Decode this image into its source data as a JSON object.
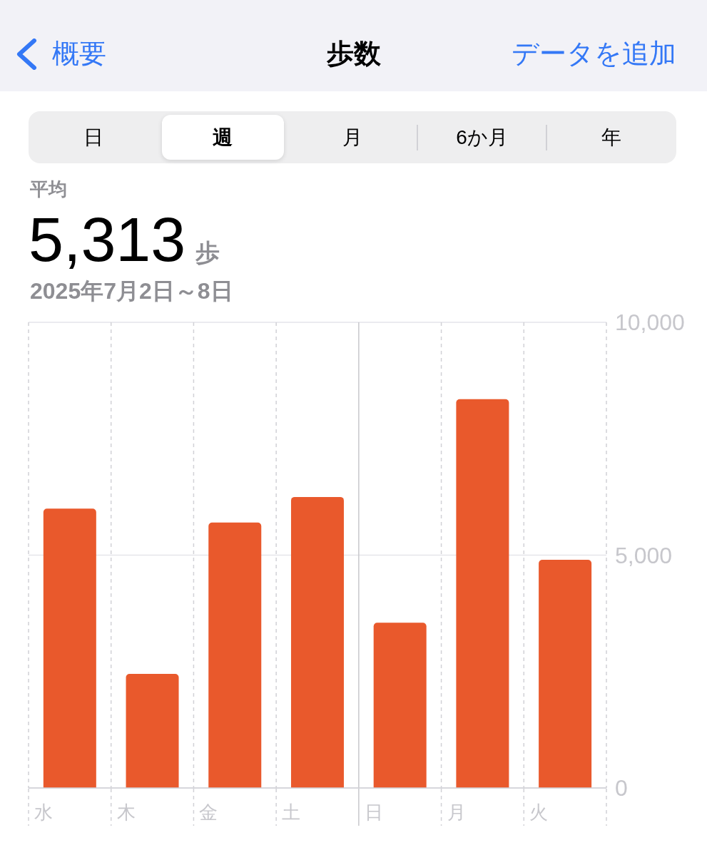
{
  "chart_data": {
    "type": "bar",
    "title": "歩数",
    "subtitle": "2025年7月2日～8日",
    "annotations": [
      "概要",
      "データを追加",
      "日",
      "週",
      "月",
      "6か月",
      "年",
      "平均",
      "5,313",
      "歩"
    ],
    "categories": [
      "水",
      "木",
      "金",
      "土",
      "日",
      "月",
      "火"
    ],
    "values": [
      6000,
      2450,
      5700,
      6250,
      3550,
      8350,
      4900
    ],
    "color": "#e9592c",
    "ylim": [
      0,
      10000
    ],
    "yticks": [
      0,
      {
        "value": 5000,
        "label": "5,000"
      },
      {
        "value": 10000,
        "label": "10,000"
      }
    ],
    "grid": true,
    "ref_lines": [
      {
        "axis": "x",
        "value": "日",
        "color": "#c7c7cc",
        "line_style": "solid"
      }
    ]
  }
}
